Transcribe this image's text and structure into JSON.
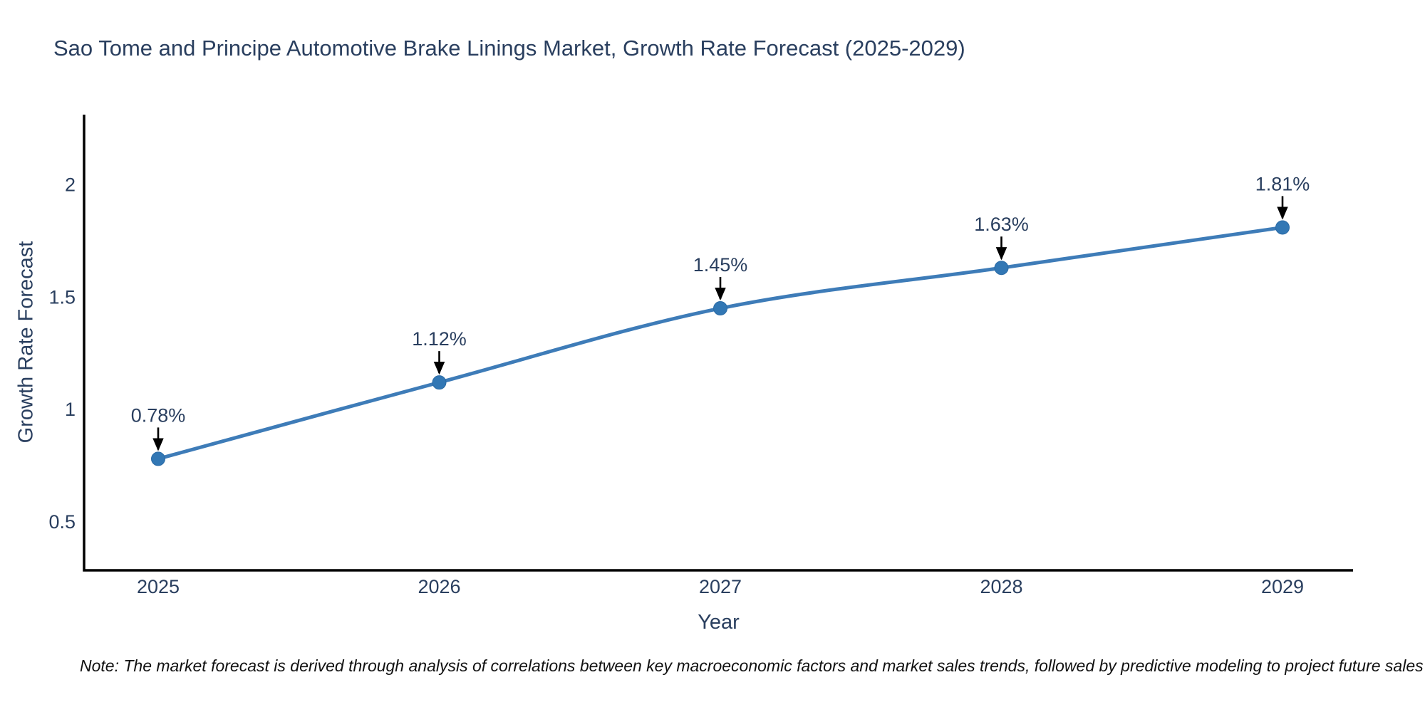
{
  "chart_data": {
    "type": "line",
    "title": "Sao Tome and Principe Automotive Brake Linings Market, Growth Rate Forecast (2025-2029)",
    "xlabel": "Year",
    "ylabel": "Growth Rate Forecast",
    "categories": [
      "2025",
      "2026",
      "2027",
      "2028",
      "2029"
    ],
    "series": [
      {
        "name": "Growth Rate Forecast",
        "values": [
          0.78,
          1.12,
          1.45,
          1.63,
          1.81
        ],
        "point_labels": [
          "0.78%",
          "1.12%",
          "1.45%",
          "1.63%",
          "1.81%"
        ]
      }
    ],
    "yticks": [
      0.5,
      1,
      1.5,
      2
    ],
    "ylim": [
      0.28,
      2.33
    ],
    "grid": false,
    "legend_position": "none",
    "line_shape": "spline",
    "colors": {
      "line": "#3E7CB8",
      "marker": "#3277B4",
      "marker_edge": "#2A6AA5",
      "axis_line": "#000000",
      "text": "#2a3f5f",
      "annotation_arrow": "#000000",
      "background": "#ffffff"
    },
    "note": "Note: The market forecast is derived through analysis of correlations between key macroeconomic factors and market sales trends, followed by predictive modeling to project future sales"
  }
}
